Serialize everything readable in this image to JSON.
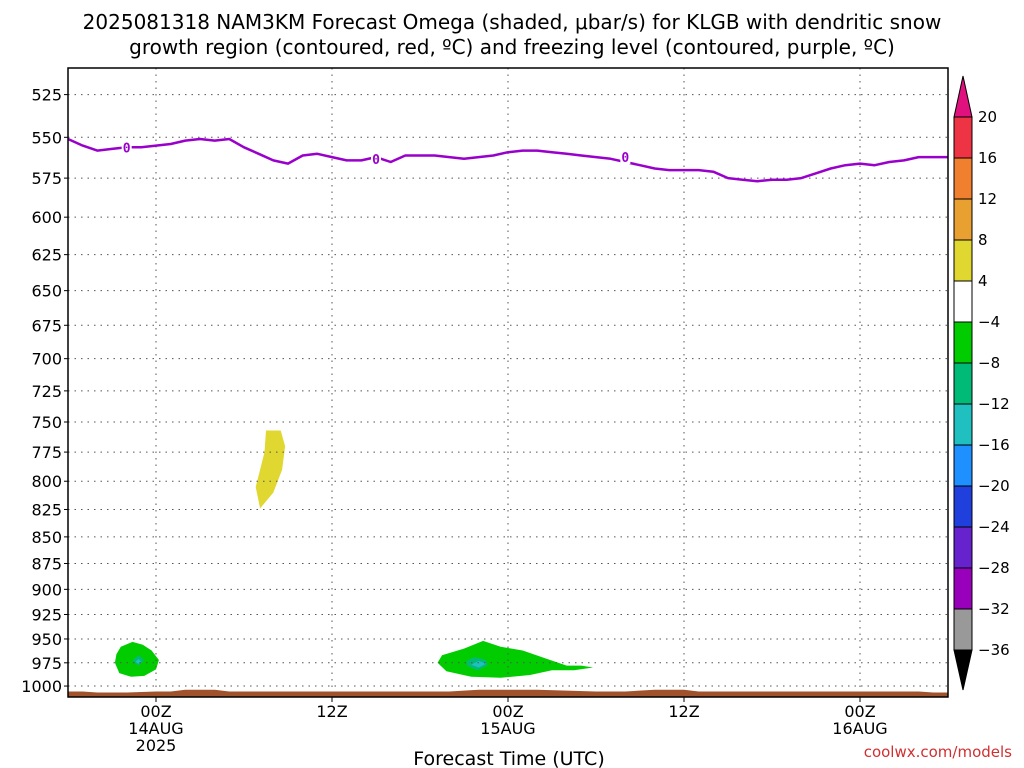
{
  "chart_data": {
    "type": "contour",
    "title_line1": "2025081318 NAM3KM Forecast Omega (shaded, μbar/s) for KLGB with dendritic snow",
    "title_line2": "growth region (contoured, red, ºC) and freezing level (contoured, purple, ºC)",
    "xlabel": "Forecast Time (UTC)",
    "credit": "coolwx.com/models",
    "x_range_hours": [
      -6,
      54
    ],
    "y_axis": {
      "scale": "pressure_reversed",
      "ylim": [
        1012,
        510
      ],
      "tick_labels": [
        "525",
        "550",
        "575",
        "600",
        "625",
        "650",
        "675",
        "700",
        "725",
        "750",
        "775",
        "800",
        "825",
        "850",
        "875",
        "900",
        "925",
        "950",
        "975",
        "1000"
      ],
      "ticks": [
        525,
        550,
        575,
        600,
        625,
        650,
        675,
        700,
        725,
        750,
        775,
        800,
        825,
        850,
        875,
        900,
        925,
        950,
        975,
        1000
      ]
    },
    "x_ticks": [
      {
        "hour": 0,
        "line1": "00Z",
        "line2": "14AUG",
        "line3": "2025"
      },
      {
        "hour": 12,
        "line1": "12Z",
        "line2": "",
        "line3": ""
      },
      {
        "hour": 24,
        "line1": "00Z",
        "line2": "15AUG",
        "line3": ""
      },
      {
        "hour": 36,
        "line1": "12Z",
        "line2": "",
        "line3": ""
      },
      {
        "hour": 48,
        "line1": "00Z",
        "line2": "16AUG",
        "line3": ""
      }
    ],
    "freezing_level": {
      "label": "0",
      "color": "#9900cc",
      "points": [
        [
          -6,
          551
        ],
        [
          -5,
          555
        ],
        [
          -4,
          558
        ],
        [
          -3,
          557
        ],
        [
          -2,
          556
        ],
        [
          -1,
          556
        ],
        [
          0,
          555
        ],
        [
          1,
          554
        ],
        [
          2,
          552
        ],
        [
          3,
          551
        ],
        [
          4,
          552
        ],
        [
          5,
          551
        ],
        [
          6,
          556
        ],
        [
          7,
          560
        ],
        [
          8,
          564
        ],
        [
          9,
          566
        ],
        [
          10,
          561
        ],
        [
          11,
          560
        ],
        [
          12,
          562
        ],
        [
          13,
          564
        ],
        [
          14,
          564
        ],
        [
          15,
          562
        ],
        [
          16,
          565
        ],
        [
          17,
          561
        ],
        [
          18,
          561
        ],
        [
          19,
          561
        ],
        [
          20,
          562
        ],
        [
          21,
          563
        ],
        [
          22,
          562
        ],
        [
          23,
          561
        ],
        [
          24,
          559
        ],
        [
          25,
          558
        ],
        [
          26,
          558
        ],
        [
          27,
          559
        ],
        [
          28,
          560
        ],
        [
          29,
          561
        ],
        [
          30,
          562
        ],
        [
          31,
          563
        ],
        [
          32,
          565
        ],
        [
          33,
          567
        ],
        [
          34,
          569
        ],
        [
          35,
          570
        ],
        [
          36,
          570
        ],
        [
          37,
          570
        ],
        [
          38,
          571
        ],
        [
          39,
          575
        ],
        [
          40,
          576
        ],
        [
          41,
          577
        ],
        [
          42,
          576
        ],
        [
          43,
          576
        ],
        [
          44,
          575
        ],
        [
          45,
          572
        ],
        [
          46,
          569
        ],
        [
          47,
          567
        ],
        [
          48,
          566
        ],
        [
          49,
          567
        ],
        [
          50,
          565
        ],
        [
          51,
          564
        ],
        [
          52,
          562
        ],
        [
          53,
          562
        ],
        [
          54,
          562
        ]
      ],
      "label_positions": [
        [
          -2,
          556
        ],
        [
          15,
          563
        ],
        [
          32,
          562
        ]
      ]
    },
    "omega_regions": [
      {
        "value_range": [
          4,
          8
        ],
        "color": "#e0d730",
        "polygon": [
          [
            7.5,
            757
          ],
          [
            8.5,
            757
          ],
          [
            8.8,
            770
          ],
          [
            8.6,
            790
          ],
          [
            8.0,
            810
          ],
          [
            7.1,
            824
          ],
          [
            6.8,
            805
          ],
          [
            7.1,
            790
          ],
          [
            7.4,
            775
          ]
        ]
      },
      {
        "value_range": [
          -8,
          -4
        ],
        "color": "#00cc00",
        "polygon": [
          [
            -2.4,
            958
          ],
          [
            -1.6,
            953
          ],
          [
            -0.9,
            956
          ],
          [
            -0.3,
            962
          ],
          [
            0.2,
            972
          ],
          [
            0.0,
            982
          ],
          [
            -0.8,
            989
          ],
          [
            -1.7,
            990
          ],
          [
            -2.5,
            986
          ],
          [
            -2.8,
            975
          ],
          [
            -2.7,
            966
          ]
        ]
      },
      {
        "value_range": [
          -12,
          -8
        ],
        "color": "#00bb77",
        "polygon": [
          [
            -1.2,
            967
          ],
          [
            -0.8,
            972
          ],
          [
            -1.2,
            978
          ],
          [
            -1.6,
            973
          ]
        ]
      },
      {
        "value_range": [
          -16,
          -12
        ],
        "color": "#20c0c0",
        "polygon": [
          [
            -1.2,
            971
          ],
          [
            -1.0,
            974
          ],
          [
            -1.2,
            976
          ],
          [
            -1.4,
            974
          ]
        ]
      },
      {
        "value_range": [
          -8,
          -4
        ],
        "color": "#00cc00",
        "polygon": [
          [
            19.5,
            967
          ],
          [
            21.0,
            960
          ],
          [
            22.3,
            952
          ],
          [
            23.5,
            958
          ],
          [
            25.0,
            962
          ],
          [
            26.5,
            970
          ],
          [
            28.0,
            978
          ],
          [
            29.0,
            978
          ],
          [
            29.8,
            980
          ],
          [
            28.5,
            983
          ],
          [
            27.0,
            983
          ],
          [
            25.5,
            988
          ],
          [
            23.5,
            991
          ],
          [
            21.5,
            990
          ],
          [
            19.8,
            984
          ],
          [
            19.2,
            975
          ]
        ]
      },
      {
        "value_range": [
          -12,
          -8
        ],
        "color": "#00bb77",
        "polygon": [
          [
            21.7,
            969
          ],
          [
            22.5,
            972
          ],
          [
            22.6,
            978
          ],
          [
            21.9,
            983
          ],
          [
            21.2,
            978
          ],
          [
            21.2,
            973
          ]
        ]
      },
      {
        "value_range": [
          -16,
          -12
        ],
        "color": "#20c0c0",
        "polygon": [
          [
            22.0,
            973
          ],
          [
            22.5,
            976
          ],
          [
            22.0,
            980
          ],
          [
            21.5,
            977
          ]
        ]
      }
    ],
    "terrain": {
      "color": "#a0522d",
      "points": [
        [
          -6,
          1006
        ],
        [
          -5,
          1006
        ],
        [
          -4,
          1007
        ],
        [
          -2,
          1007
        ],
        [
          0,
          1006
        ],
        [
          1,
          1006
        ],
        [
          2,
          1004
        ],
        [
          4,
          1004
        ],
        [
          5,
          1006
        ],
        [
          8,
          1006
        ],
        [
          12,
          1006
        ],
        [
          16,
          1006
        ],
        [
          18,
          1006
        ],
        [
          20,
          1006
        ],
        [
          22,
          1004
        ],
        [
          24,
          1004
        ],
        [
          26,
          1004
        ],
        [
          28,
          1005
        ],
        [
          30,
          1006
        ],
        [
          32,
          1006
        ],
        [
          34,
          1004
        ],
        [
          36,
          1004
        ],
        [
          37,
          1006
        ],
        [
          40,
          1006
        ],
        [
          44,
          1006
        ],
        [
          48,
          1006
        ],
        [
          52,
          1006
        ],
        [
          53,
          1007
        ],
        [
          54,
          1007
        ]
      ]
    },
    "colorbar": {
      "labels": [
        "20",
        "16",
        "12",
        "8",
        "4",
        "−4",
        "−8",
        "−12",
        "−16",
        "−20",
        "−24",
        "−28",
        "−32",
        "−36"
      ],
      "top_arrow_color": "#e0107e",
      "bottom_arrow_color": "#000000",
      "segments": [
        {
          "color": "#ee3344"
        },
        {
          "color": "#f08030"
        },
        {
          "color": "#e8a030"
        },
        {
          "color": "#e0d730"
        },
        {
          "color": "#ffffff"
        },
        {
          "color": "#00cc00"
        },
        {
          "color": "#00bb77"
        },
        {
          "color": "#20c0c0"
        },
        {
          "color": "#1e90ff"
        },
        {
          "color": "#2040dd"
        },
        {
          "color": "#6622cc"
        },
        {
          "color": "#9900bb"
        },
        {
          "color": "#999999"
        }
      ]
    }
  }
}
